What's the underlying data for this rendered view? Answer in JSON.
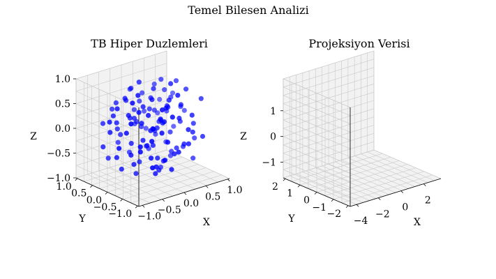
{
  "figure": {
    "suptitle": "Temel Bilesen Analizi"
  },
  "colors": {
    "points": "#0000ff",
    "pane": "#f2f2f2",
    "grid": "#c8c8c8",
    "axis_line": "#000000",
    "background": "#ffffff"
  },
  "chart_data": [
    {
      "type": "scatter",
      "projection": "3d",
      "title": "TB Hiper Duzlemleri",
      "xlabel": "X",
      "ylabel": "Y",
      "zlabel": "Z",
      "xlim": [
        -1.0,
        1.0
      ],
      "ylim": [
        -1.0,
        1.0
      ],
      "zlim": [
        -1.0,
        1.0
      ],
      "xticks": [
        "−1.0",
        "−0.5",
        "0.0",
        "0.5",
        "1.0"
      ],
      "yticks": [
        "−1.0",
        "−0.5",
        "0.0",
        "0.5",
        "1.0"
      ],
      "zticks": [
        "−1.0",
        "−0.5",
        "0.0",
        "0.5",
        "1.0"
      ],
      "grid": true,
      "view": {
        "elev": 15,
        "azim": -130
      },
      "points": [
        [
          -0.05,
          -0.08,
          -0.3
        ],
        [
          0.22,
          0.12,
          0.05
        ],
        [
          -0.28,
          0.32,
          0.2
        ],
        [
          0.4,
          -0.18,
          -0.45
        ],
        [
          -0.12,
          -0.42,
          0.35
        ],
        [
          0.08,
          0.48,
          -0.12
        ],
        [
          0.55,
          0.22,
          0.42
        ],
        [
          -0.45,
          -0.05,
          -0.58
        ],
        [
          0.15,
          -0.3,
          0.62
        ],
        [
          -0.35,
          0.18,
          -0.25
        ],
        [
          0.3,
          0.38,
          0.18
        ],
        [
          -0.2,
          -0.22,
          0.08
        ],
        [
          0.62,
          -0.4,
          0.05
        ],
        [
          -0.58,
          0.42,
          0.3
        ],
        [
          0.05,
          0.05,
          0.78
        ],
        [
          -0.1,
          0.28,
          -0.72
        ],
        [
          0.35,
          -0.05,
          -0.15
        ],
        [
          -0.3,
          -0.38,
          -0.4
        ],
        [
          0.18,
          0.6,
          0.5
        ],
        [
          -0.5,
          -0.28,
          0.55
        ],
        [
          0.48,
          0.1,
          -0.62
        ],
        [
          -0.05,
          -0.55,
          -0.1
        ],
        [
          0.25,
          -0.48,
          0.28
        ],
        [
          -0.4,
          0.55,
          -0.05
        ],
        [
          0.7,
          0.35,
          -0.25
        ],
        [
          -0.65,
          -0.1,
          0.12
        ],
        [
          0.1,
          0.25,
          0.3
        ],
        [
          -0.18,
          0.05,
          0.48
        ],
        [
          0.42,
          0.52,
          -0.38
        ],
        [
          -0.22,
          -0.62,
          0.62
        ],
        [
          0.58,
          -0.22,
          0.7
        ],
        [
          -0.62,
          0.25,
          -0.48
        ],
        [
          0.0,
          -0.15,
          -0.55
        ],
        [
          0.32,
          0.2,
          0.85
        ],
        [
          -0.08,
          0.4,
          0.05
        ],
        [
          0.12,
          -0.65,
          -0.32
        ],
        [
          -0.48,
          0.08,
          0.38
        ],
        [
          0.5,
          -0.55,
          -0.05
        ],
        [
          -0.32,
          -0.48,
          0.22
        ],
        [
          0.2,
          0.42,
          -0.58
        ],
        [
          0.65,
          0.05,
          0.25
        ],
        [
          -0.7,
          0.35,
          0.02
        ],
        [
          0.02,
          0.62,
          0.2
        ],
        [
          -0.15,
          -0.3,
          -0.78
        ],
        [
          0.38,
          -0.35,
          0.48
        ],
        [
          -0.42,
          0.28,
          0.65
        ],
        [
          0.28,
          0.68,
          0.08
        ],
        [
          -0.25,
          -0.05,
          -0.15
        ],
        [
          0.45,
          0.28,
          0.58
        ],
        [
          -0.55,
          -0.4,
          -0.2
        ],
        [
          0.08,
          -0.2,
          0.15
        ],
        [
          -0.02,
          0.15,
          -0.38
        ],
        [
          0.6,
          -0.1,
          -0.5
        ],
        [
          -0.38,
          0.62,
          0.45
        ],
        [
          0.15,
          -0.58,
          0.8
        ],
        [
          -0.6,
          -0.22,
          0.75
        ],
        [
          0.75,
          0.45,
          0.38
        ],
        [
          -0.75,
          0.5,
          -0.3
        ],
        [
          0.3,
          -0.7,
          0.1
        ],
        [
          -0.28,
          0.7,
          -0.4
        ],
        [
          0.52,
          0.6,
          0.0
        ],
        [
          -0.45,
          -0.62,
          0.05
        ],
        [
          0.0,
          0.0,
          0.0
        ],
        [
          0.18,
          -0.08,
          -0.68
        ],
        [
          -0.12,
          0.52,
          0.7
        ],
        [
          0.4,
          -0.42,
          -0.3
        ],
        [
          -0.35,
          -0.15,
          0.25
        ],
        [
          0.25,
          0.3,
          -0.2
        ],
        [
          -0.05,
          -0.7,
          0.45
        ],
        [
          0.68,
          -0.3,
          -0.7
        ],
        [
          -0.68,
          0.15,
          0.55
        ],
        [
          0.12,
          0.75,
          -0.15
        ],
        [
          -0.2,
          -0.4,
          -0.6
        ],
        [
          0.35,
          0.05,
          0.35
        ],
        [
          -0.52,
          0.4,
          0.15
        ],
        [
          0.05,
          -0.35,
          0.5
        ],
        [
          0.58,
          0.42,
          -0.55
        ],
        [
          -0.3,
          0.1,
          -0.85
        ],
        [
          0.22,
          -0.25,
          0.92
        ],
        [
          -0.1,
          -0.12,
          0.65
        ],
        [
          0.45,
          -0.6,
          0.32
        ],
        [
          -0.62,
          -0.5,
          -0.05
        ],
        [
          0.8,
          0.15,
          0.1
        ],
        [
          -0.8,
          -0.08,
          -0.15
        ],
        [
          0.1,
          0.35,
          -0.48
        ],
        [
          -0.4,
          0.72,
          0.3
        ],
        [
          0.62,
          0.68,
          0.22
        ],
        [
          -0.25,
          -0.75,
          -0.35
        ],
        [
          0.28,
          0.15,
          -0.9
        ],
        [
          -0.15,
          0.22,
          0.92
        ],
        [
          0.5,
          -0.15,
          0.05
        ],
        [
          -0.48,
          0.0,
          -0.4
        ],
        [
          0.05,
          0.5,
          0.4
        ],
        [
          -0.32,
          -0.32,
          0.45
        ],
        [
          0.38,
          0.5,
          0.65
        ],
        [
          -0.58,
          0.58,
          -0.6
        ],
        [
          0.72,
          -0.5,
          0.55
        ],
        [
          -0.72,
          -0.35,
          0.4
        ],
        [
          0.15,
          0.08,
          -0.05
        ],
        [
          -0.08,
          -0.48,
          0.3
        ],
        [
          0.42,
          0.35,
          -0.05
        ],
        [
          -0.38,
          0.48,
          -0.15
        ],
        [
          0.2,
          -0.4,
          -0.45
        ],
        [
          -0.2,
          0.3,
          0.18
        ],
        [
          0.55,
          0.05,
          0.8
        ],
        [
          -0.55,
          0.2,
          -0.72
        ],
        [
          0.0,
          -0.6,
          -0.65
        ],
        [
          0.32,
          -0.68,
          -0.2
        ],
        [
          -0.65,
          0.65,
          0.1
        ],
        [
          0.65,
          -0.65,
          -0.15
        ],
        [
          -0.02,
          0.7,
          0.6
        ],
        [
          0.48,
          0.25,
          0.15
        ],
        [
          -0.45,
          -0.18,
          0.85
        ],
        [
          0.25,
          -0.12,
          0.4
        ],
        [
          -0.28,
          0.45,
          0.52
        ],
        [
          0.1,
          -0.05,
          -0.85
        ],
        [
          0.78,
          -0.2,
          -0.35
        ],
        [
          -0.78,
          0.25,
          0.28
        ],
        [
          0.35,
          0.72,
          -0.3
        ],
        [
          -0.18,
          -0.55,
          0.12
        ],
        [
          0.08,
          0.18,
          0.55
        ],
        [
          -0.42,
          -0.6,
          -0.5
        ],
        [
          0.6,
          0.3,
          -0.8
        ],
        [
          -0.1,
          0.6,
          -0.62
        ]
      ]
    },
    {
      "type": "scatter",
      "projection": "3d",
      "title": "Projeksiyon Verisi",
      "xlabel": "X",
      "ylabel": "Y",
      "zlabel": "",
      "xlim": [
        -4.5,
        3.5
      ],
      "ylim": [
        -2.2,
        2.2
      ],
      "zlim": [
        -1.6,
        1.6
      ],
      "xticks": [
        "−4",
        "−2",
        "0",
        "2"
      ],
      "yticks": [
        "−2",
        "−1",
        "0",
        "1",
        "2"
      ],
      "zticks": [
        "−1",
        "0",
        "1"
      ],
      "grid": true,
      "view": {
        "elev": 15,
        "azim": -130
      },
      "points": []
    }
  ]
}
